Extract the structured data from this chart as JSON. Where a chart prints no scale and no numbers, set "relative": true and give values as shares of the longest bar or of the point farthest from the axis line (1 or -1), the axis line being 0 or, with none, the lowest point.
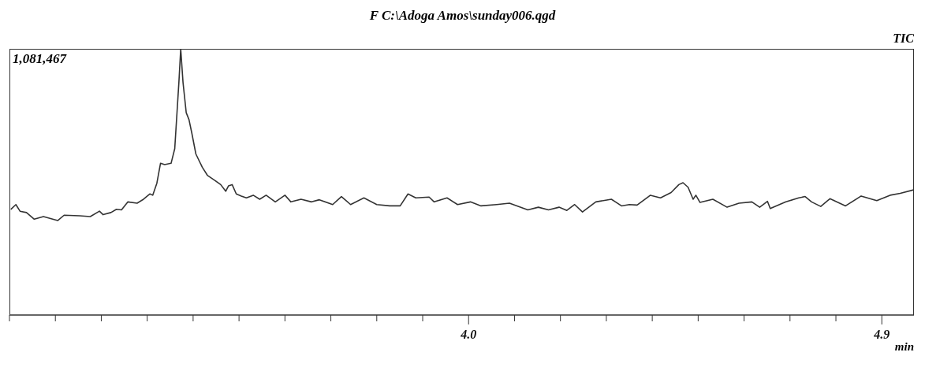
{
  "chart_data": {
    "type": "line",
    "title": "F C:\\Adoga Amos\\sunday006.qgd",
    "xlabel": "min",
    "annotations": [
      "1,081,467",
      "TIC"
    ],
    "relative": true,
    "grid": false,
    "legend": false,
    "marker": "none",
    "line_style": "solid",
    "xlim": [
      3.0,
      4.97
    ],
    "xticks": [
      {
        "value": 3.0,
        "label": null
      },
      {
        "value": 3.1,
        "label": null
      },
      {
        "value": 3.2,
        "label": null
      },
      {
        "value": 3.3,
        "label": null
      },
      {
        "value": 3.4,
        "label": null
      },
      {
        "value": 3.5,
        "label": null
      },
      {
        "value": 3.6,
        "label": null
      },
      {
        "value": 3.7,
        "label": null
      },
      {
        "value": 3.8,
        "label": null
      },
      {
        "value": 3.9,
        "label": null
      },
      {
        "value": 4.0,
        "label": "4.0"
      },
      {
        "value": 4.1,
        "label": null
      },
      {
        "value": 4.2,
        "label": null
      },
      {
        "value": 4.3,
        "label": null
      },
      {
        "value": 4.4,
        "label": null
      },
      {
        "value": 4.5,
        "label": null
      },
      {
        "value": 4.6,
        "label": null
      },
      {
        "value": 4.7,
        "label": null
      },
      {
        "value": 4.8,
        "label": null
      },
      {
        "value": 4.9,
        "label": "4.9"
      }
    ],
    "series": [
      {
        "color": "#333333",
        "x": [
          3.003,
          3.014,
          3.023,
          3.037,
          3.054,
          3.074,
          3.105,
          3.119,
          3.153,
          3.176,
          3.196,
          3.204,
          3.221,
          3.233,
          3.244,
          3.258,
          3.278,
          3.292,
          3.306,
          3.312,
          3.321,
          3.329,
          3.338,
          3.352,
          3.36,
          3.369,
          3.373,
          3.378,
          3.385,
          3.391,
          3.397,
          3.406,
          3.42,
          3.431,
          3.448,
          3.46,
          3.471,
          3.477,
          3.485,
          3.494,
          3.505,
          3.516,
          3.531,
          3.545,
          3.559,
          3.579,
          3.6,
          3.613,
          3.635,
          3.658,
          3.675,
          3.704,
          3.723,
          3.743,
          3.772,
          3.8,
          3.828,
          3.851,
          3.868,
          3.885,
          3.914,
          3.925,
          3.953,
          3.976,
          4.004,
          4.027,
          4.061,
          4.089,
          4.129,
          4.152,
          4.174,
          4.197,
          4.214,
          4.231,
          4.248,
          4.277,
          4.311,
          4.333,
          4.35,
          4.367,
          4.396,
          4.418,
          4.441,
          4.458,
          4.467,
          4.478,
          4.489,
          4.495,
          4.504,
          4.532,
          4.563,
          4.589,
          4.617,
          4.634,
          4.651,
          4.657,
          4.691,
          4.719,
          4.733,
          4.747,
          4.767,
          4.787,
          4.821,
          4.855,
          4.889,
          4.918,
          4.94,
          4.969
        ],
        "values": [
          0.397,
          0.415,
          0.39,
          0.385,
          0.36,
          0.37,
          0.355,
          0.375,
          0.373,
          0.37,
          0.39,
          0.377,
          0.385,
          0.397,
          0.395,
          0.425,
          0.42,
          0.435,
          0.455,
          0.45,
          0.495,
          0.57,
          0.565,
          0.57,
          0.625,
          0.874,
          1,
          0.874,
          0.76,
          0.734,
          0.685,
          0.605,
          0.555,
          0.525,
          0.505,
          0.49,
          0.465,
          0.485,
          0.49,
          0.455,
          0.447,
          0.44,
          0.45,
          0.435,
          0.45,
          0.425,
          0.45,
          0.425,
          0.435,
          0.425,
          0.433,
          0.415,
          0.445,
          0.415,
          0.44,
          0.415,
          0.41,
          0.41,
          0.455,
          0.44,
          0.443,
          0.425,
          0.44,
          0.415,
          0.425,
          0.41,
          0.415,
          0.42,
          0.395,
          0.405,
          0.395,
          0.405,
          0.393,
          0.415,
          0.387,
          0.425,
          0.435,
          0.41,
          0.415,
          0.413,
          0.45,
          0.44,
          0.46,
          0.49,
          0.497,
          0.48,
          0.435,
          0.45,
          0.423,
          0.435,
          0.405,
          0.42,
          0.425,
          0.405,
          0.427,
          0.4,
          0.425,
          0.44,
          0.445,
          0.425,
          0.408,
          0.437,
          0.41,
          0.447,
          0.43,
          0.45,
          0.457,
          0.47
        ]
      }
    ]
  }
}
